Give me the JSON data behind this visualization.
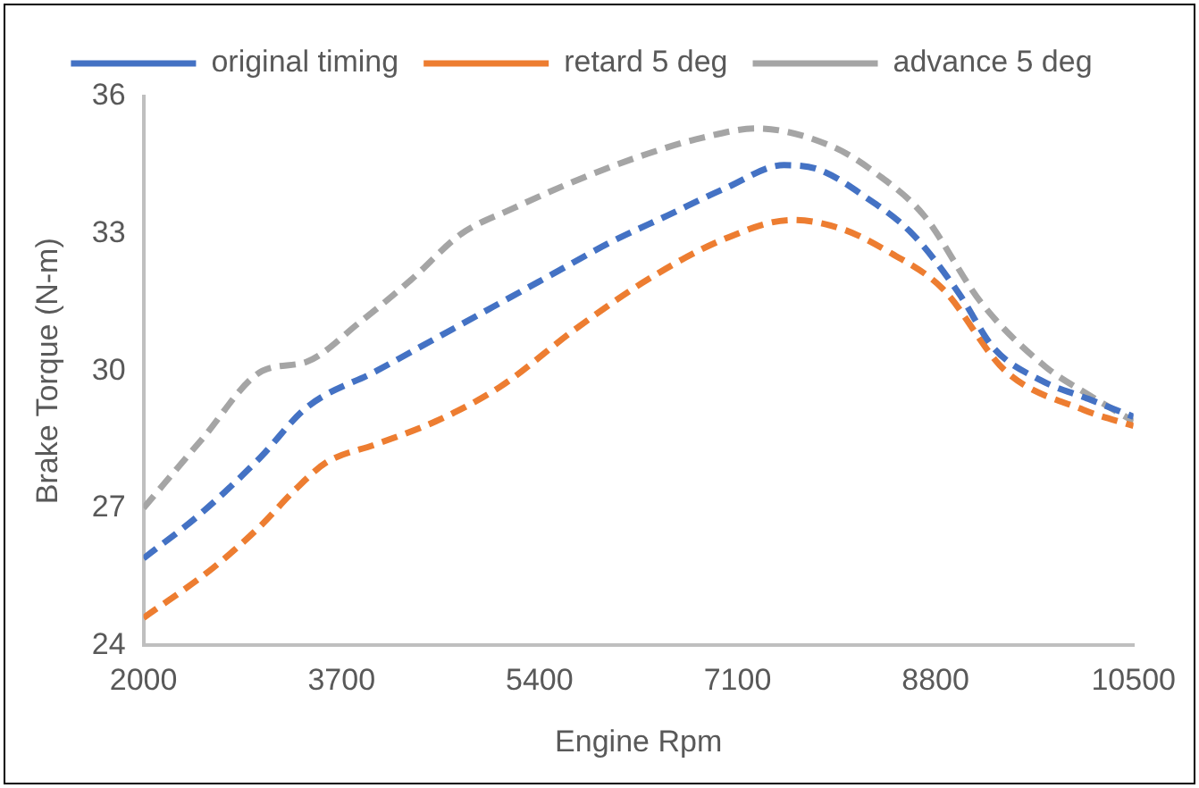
{
  "chart_data": {
    "type": "line",
    "xlabel": "Engine Rpm",
    "ylabel": "Brake Torque (N-m)",
    "xlim": [
      2000,
      10500
    ],
    "xticks": [
      2000,
      3700,
      5400,
      7100,
      8800,
      10500
    ],
    "ylim": [
      24,
      36
    ],
    "yticks": [
      24,
      27,
      30,
      33,
      36
    ],
    "grid": false,
    "legend": "top",
    "line_style": "dashed",
    "marker": "none",
    "series": [
      {
        "name": "original timing",
        "color": "#4472c4",
        "x": [
          2000,
          2500,
          3000,
          3400,
          4000,
          4500,
          5000,
          5500,
          6000,
          6500,
          7000,
          7500,
          7800,
          8200,
          8600,
          9000,
          9300,
          9700,
          10100,
          10500
        ],
        "values": [
          25.9,
          26.9,
          28.1,
          29.2,
          30.0,
          30.7,
          31.4,
          32.1,
          32.8,
          33.4,
          34.0,
          34.5,
          34.4,
          33.8,
          33.0,
          31.7,
          30.5,
          29.8,
          29.4,
          29.0
        ]
      },
      {
        "name": "retard 5 deg",
        "color": "#ed7d31",
        "x": [
          2000,
          2600,
          3000,
          3300,
          3570,
          4000,
          4510,
          5060,
          5700,
          6330,
          7000,
          7570,
          8000,
          8400,
          8860,
          9400,
          10070,
          10500
        ],
        "values": [
          24.6,
          25.7,
          26.6,
          27.4,
          28.0,
          28.4,
          28.9,
          29.65,
          30.9,
          32.0,
          32.9,
          33.3,
          33.1,
          32.6,
          31.8,
          30.0,
          29.15,
          28.8
        ]
      },
      {
        "name": "advance 5 deg",
        "color": "#a5a5a5",
        "x": [
          2000,
          2500,
          3020,
          3400,
          3850,
          4300,
          4730,
          5170,
          5750,
          6330,
          6800,
          7260,
          7920,
          8300,
          8700,
          9190,
          9740,
          10100,
          10500
        ],
        "values": [
          27.0,
          28.5,
          30.0,
          30.2,
          31.05,
          32.0,
          33.0,
          33.55,
          34.2,
          34.75,
          35.1,
          35.3,
          34.9,
          34.3,
          33.4,
          31.5,
          30.1,
          29.5,
          28.9
        ]
      }
    ]
  }
}
